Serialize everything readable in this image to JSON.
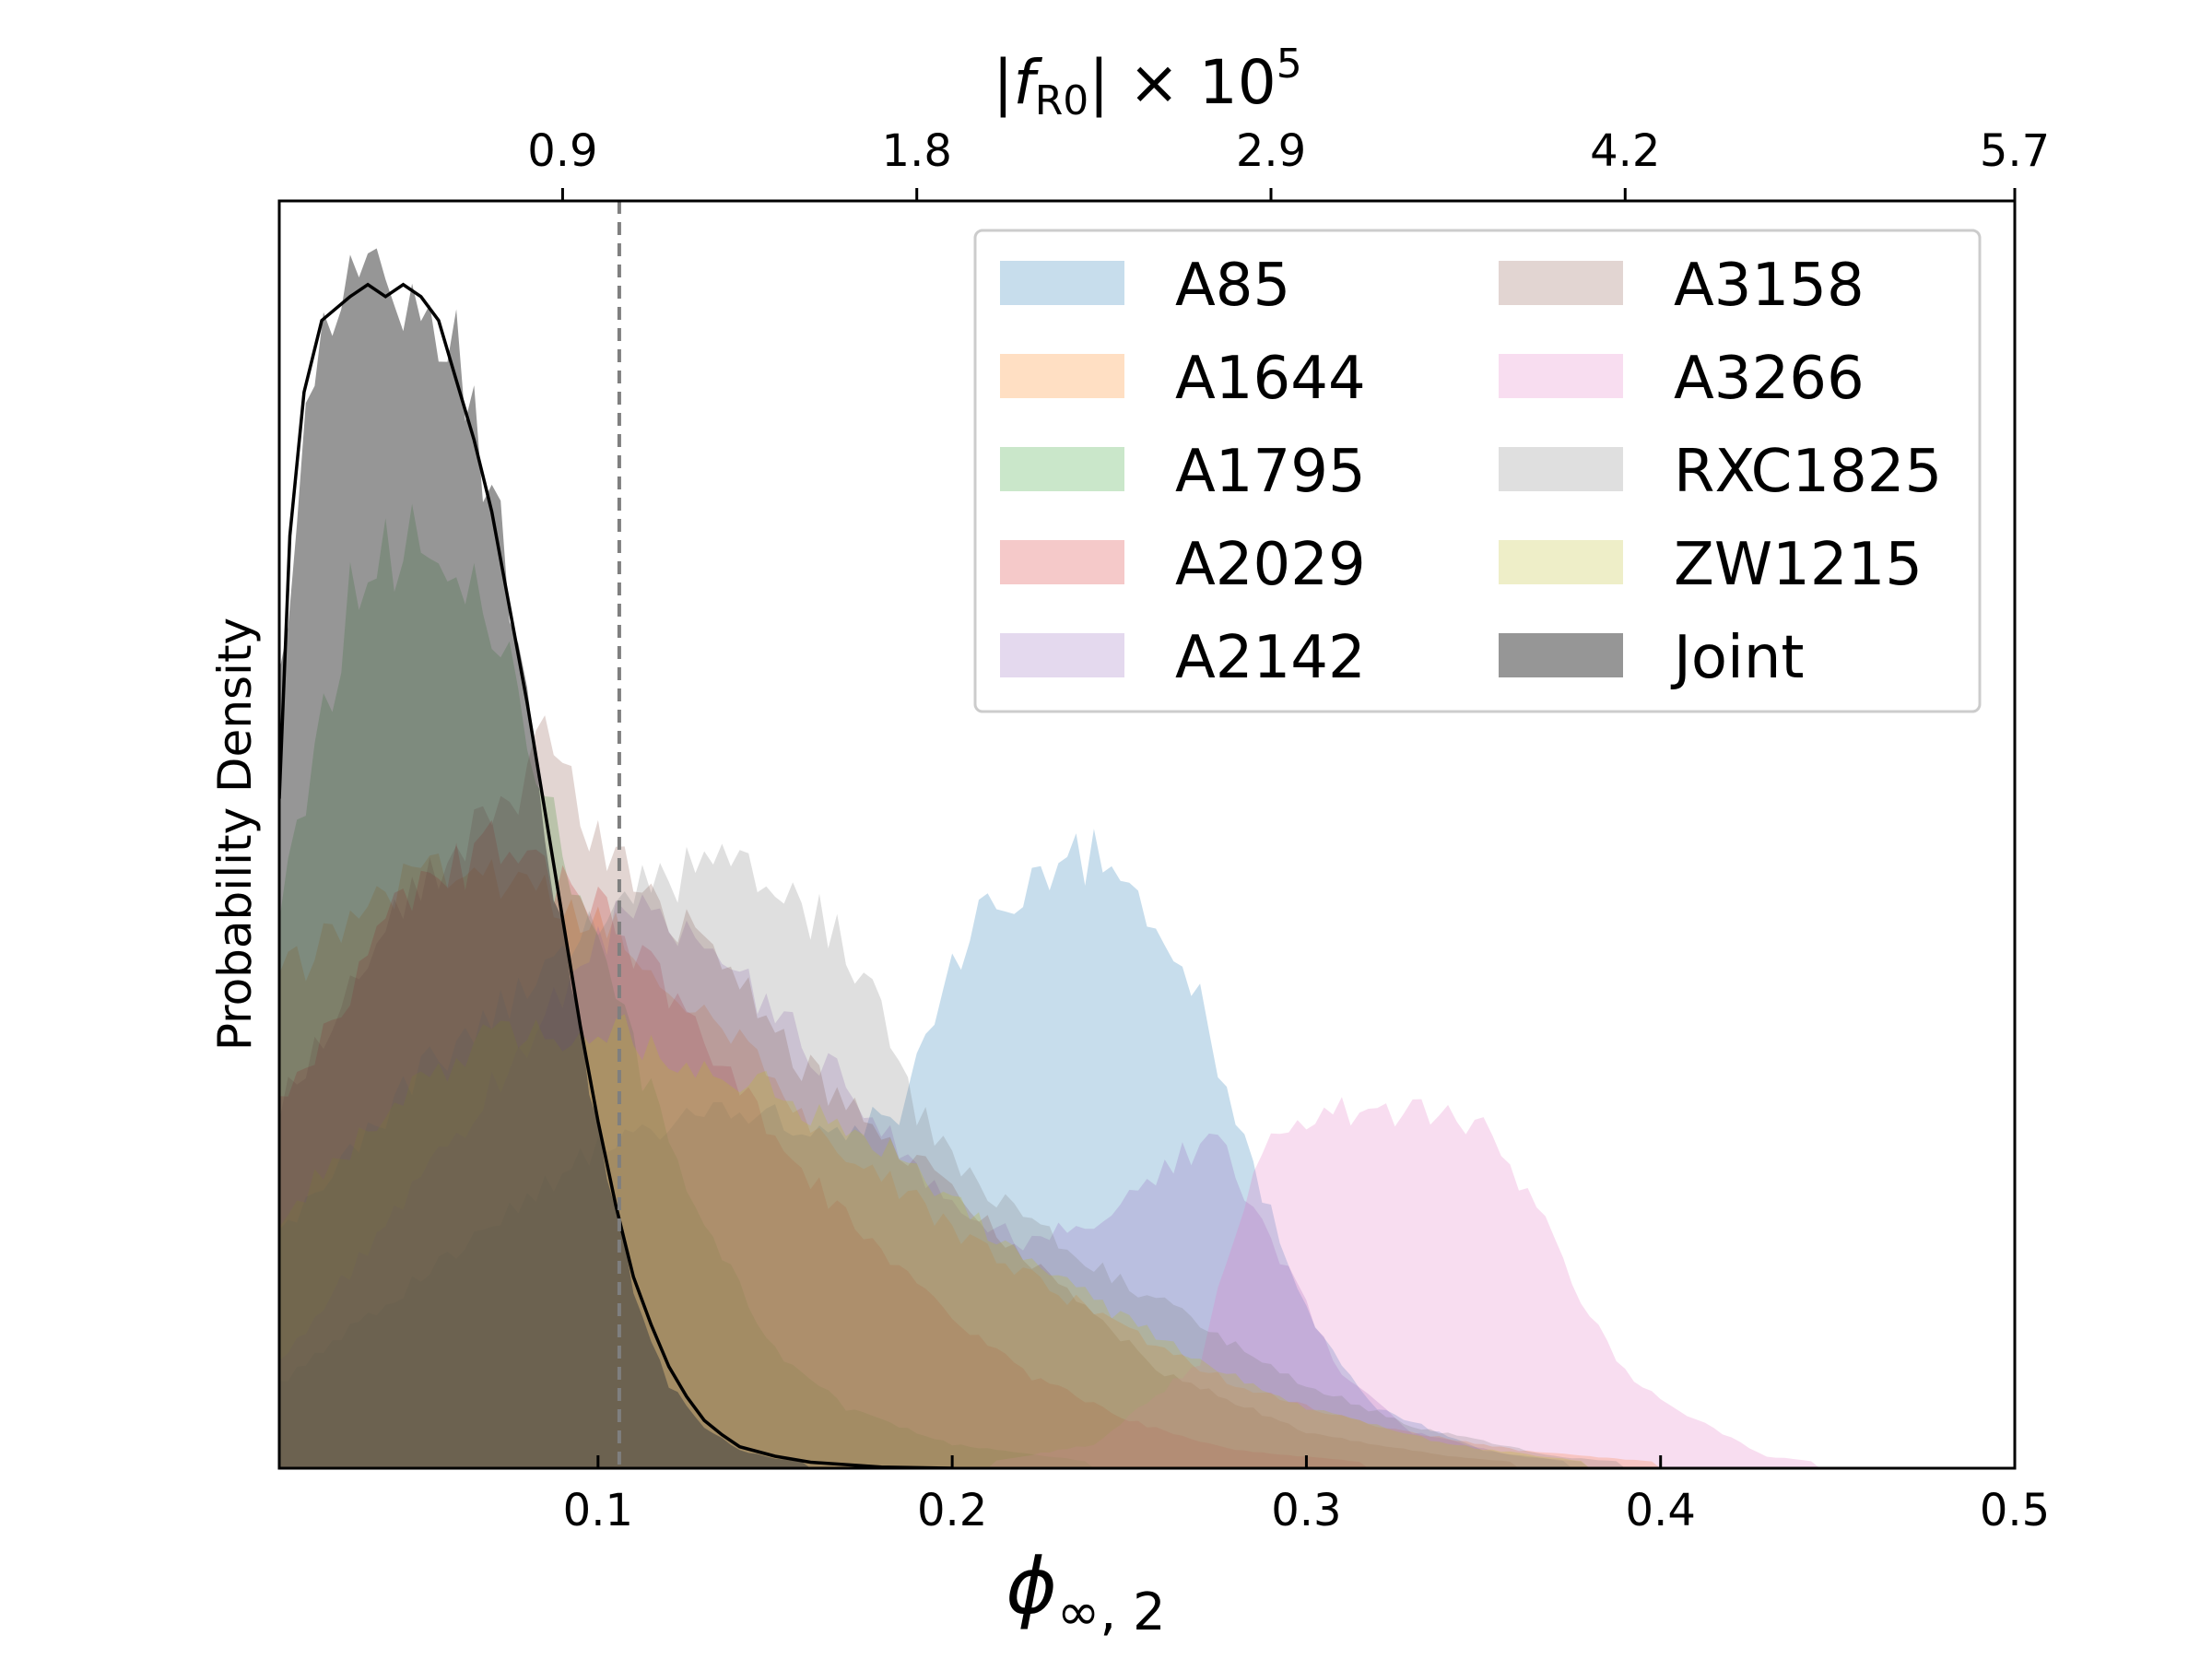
{
  "chart_data": {
    "type": "area",
    "xlabel": {
      "main": "ϕ",
      "sub": "∞, 2"
    },
    "ylabel": "Probability Density",
    "top_axis_label": {
      "pre": "|",
      "var": "f",
      "sub": "R0",
      "post": "| × 10",
      "sup": "5"
    },
    "xlim": [
      0.01,
      0.5
    ],
    "ylim": [
      0,
      1.06
    ],
    "x_ticks": [
      0.1,
      0.2,
      0.3,
      0.4,
      0.5
    ],
    "x_tick_labels": [
      "0.1",
      "0.2",
      "0.3",
      "0.4",
      "0.5"
    ],
    "top_ticks": [
      0.09,
      0.19,
      0.29,
      0.39,
      0.5
    ],
    "top_tick_labels": [
      "0.9",
      "1.8",
      "2.9",
      "4.2",
      "5.7"
    ],
    "vline": {
      "x": 0.106,
      "color": "#7f7f7f",
      "style": "dashed"
    },
    "grid": false,
    "legend_position": "top-right",
    "legend_columns": 2,
    "series": [
      {
        "name": "A85",
        "color": "#1f77b4",
        "opacity": 0.25,
        "points": [
          [
            0.01,
            0.07
          ],
          [
            0.05,
            0.16
          ],
          [
            0.1,
            0.27
          ],
          [
            0.14,
            0.3
          ],
          [
            0.17,
            0.28
          ],
          [
            0.185,
            0.3
          ],
          [
            0.2,
            0.43
          ],
          [
            0.215,
            0.48
          ],
          [
            0.23,
            0.51
          ],
          [
            0.245,
            0.51
          ],
          [
            0.26,
            0.46
          ],
          [
            0.27,
            0.39
          ],
          [
            0.285,
            0.25
          ],
          [
            0.3,
            0.13
          ],
          [
            0.32,
            0.05
          ],
          [
            0.35,
            0.015
          ],
          [
            0.38,
            0.003
          ],
          [
            0.4,
            0
          ]
        ]
      },
      {
        "name": "A1644",
        "color": "#ff7f0e",
        "opacity": 0.25,
        "points": [
          [
            0.01,
            0.41
          ],
          [
            0.04,
            0.48
          ],
          [
            0.07,
            0.5
          ],
          [
            0.1,
            0.46
          ],
          [
            0.13,
            0.38
          ],
          [
            0.16,
            0.29
          ],
          [
            0.2,
            0.2
          ],
          [
            0.24,
            0.13
          ],
          [
            0.28,
            0.07
          ],
          [
            0.32,
            0.035
          ],
          [
            0.36,
            0.015
          ],
          [
            0.4,
            0.005
          ],
          [
            0.44,
            0
          ]
        ]
      },
      {
        "name": "A1795",
        "color": "#2ca02c",
        "opacity": 0.25,
        "points": [
          [
            0.01,
            0.47
          ],
          [
            0.03,
            0.73
          ],
          [
            0.05,
            0.79
          ],
          [
            0.07,
            0.72
          ],
          [
            0.09,
            0.52
          ],
          [
            0.11,
            0.35
          ],
          [
            0.13,
            0.2
          ],
          [
            0.15,
            0.1
          ],
          [
            0.17,
            0.05
          ],
          [
            0.2,
            0.02
          ],
          [
            0.24,
            0.005
          ],
          [
            0.28,
            0
          ]
        ]
      },
      {
        "name": "A2029",
        "color": "#d62728",
        "opacity": 0.25,
        "points": [
          [
            0.01,
            0.3
          ],
          [
            0.04,
            0.46
          ],
          [
            0.07,
            0.52
          ],
          [
            0.1,
            0.47
          ],
          [
            0.13,
            0.36
          ],
          [
            0.16,
            0.24
          ],
          [
            0.19,
            0.15
          ],
          [
            0.22,
            0.08
          ],
          [
            0.25,
            0.04
          ],
          [
            0.28,
            0.015
          ],
          [
            0.32,
            0.004
          ],
          [
            0.35,
            0
          ]
        ]
      },
      {
        "name": "A2142",
        "color": "#9467bd",
        "opacity": 0.25,
        "points": [
          [
            0.01,
            0.09
          ],
          [
            0.05,
            0.24
          ],
          [
            0.09,
            0.4
          ],
          [
            0.11,
            0.47
          ],
          [
            0.13,
            0.43
          ],
          [
            0.15,
            0.38
          ],
          [
            0.18,
            0.29
          ],
          [
            0.2,
            0.22
          ],
          [
            0.22,
            0.19
          ],
          [
            0.24,
            0.21
          ],
          [
            0.26,
            0.25
          ],
          [
            0.275,
            0.28
          ],
          [
            0.29,
            0.19
          ],
          [
            0.31,
            0.08
          ],
          [
            0.33,
            0.03
          ],
          [
            0.36,
            0.01
          ],
          [
            0.4,
            0
          ]
        ]
      },
      {
        "name": "A3158",
        "color": "#8c564b",
        "opacity": 0.25,
        "points": [
          [
            0.01,
            0.3
          ],
          [
            0.04,
            0.46
          ],
          [
            0.07,
            0.55
          ],
          [
            0.085,
            0.6
          ],
          [
            0.1,
            0.53
          ],
          [
            0.13,
            0.44
          ],
          [
            0.16,
            0.33
          ],
          [
            0.2,
            0.23
          ],
          [
            0.23,
            0.15
          ],
          [
            0.26,
            0.08
          ],
          [
            0.3,
            0.03
          ],
          [
            0.34,
            0.01
          ],
          [
            0.38,
            0
          ]
        ]
      },
      {
        "name": "A3266",
        "color": "#e377c2",
        "opacity": 0.25,
        "points": [
          [
            0.01,
            0
          ],
          [
            0.2,
            0
          ],
          [
            0.24,
            0.02
          ],
          [
            0.27,
            0.09
          ],
          [
            0.28,
            0.2
          ],
          [
            0.29,
            0.28
          ],
          [
            0.31,
            0.3
          ],
          [
            0.33,
            0.3
          ],
          [
            0.35,
            0.28
          ],
          [
            0.36,
            0.24
          ],
          [
            0.37,
            0.19
          ],
          [
            0.38,
            0.13
          ],
          [
            0.39,
            0.08
          ],
          [
            0.41,
            0.04
          ],
          [
            0.43,
            0.01
          ],
          [
            0.46,
            0
          ]
        ]
      },
      {
        "name": "RXC1825",
        "color": "#7f7f7f",
        "opacity": 0.25,
        "points": [
          [
            0.01,
            0.2
          ],
          [
            0.05,
            0.33
          ],
          [
            0.09,
            0.43
          ],
          [
            0.11,
            0.48
          ],
          [
            0.13,
            0.5
          ],
          [
            0.15,
            0.49
          ],
          [
            0.17,
            0.44
          ],
          [
            0.18,
            0.38
          ],
          [
            0.19,
            0.3
          ],
          [
            0.21,
            0.23
          ],
          [
            0.24,
            0.17
          ],
          [
            0.27,
            0.12
          ],
          [
            0.3,
            0.07
          ],
          [
            0.33,
            0.035
          ],
          [
            0.37,
            0.01
          ],
          [
            0.41,
            0
          ]
        ]
      },
      {
        "name": "ZW1215",
        "color": "#bcbd22",
        "opacity": 0.25,
        "points": [
          [
            0.01,
            0.21
          ],
          [
            0.04,
            0.3
          ],
          [
            0.07,
            0.36
          ],
          [
            0.1,
            0.37
          ],
          [
            0.13,
            0.34
          ],
          [
            0.16,
            0.3
          ],
          [
            0.18,
            0.27
          ],
          [
            0.21,
            0.2
          ],
          [
            0.24,
            0.14
          ],
          [
            0.27,
            0.09
          ],
          [
            0.3,
            0.05
          ],
          [
            0.34,
            0.02
          ],
          [
            0.38,
            0.005
          ],
          [
            0.42,
            0
          ]
        ]
      },
      {
        "name": "Joint",
        "color": "#404040",
        "opacity": 0.55,
        "points": [
          [
            0.01,
            0.65
          ],
          [
            0.015,
            0.83
          ],
          [
            0.02,
            0.92
          ],
          [
            0.03,
            1.0
          ],
          [
            0.035,
            1.01
          ],
          [
            0.04,
            1.0
          ],
          [
            0.05,
            1.0
          ],
          [
            0.06,
            0.94
          ],
          [
            0.07,
            0.82
          ],
          [
            0.08,
            0.64
          ],
          [
            0.09,
            0.45
          ],
          [
            0.1,
            0.28
          ],
          [
            0.11,
            0.15
          ],
          [
            0.12,
            0.07
          ],
          [
            0.13,
            0.035
          ],
          [
            0.14,
            0.015
          ],
          [
            0.15,
            0.008
          ],
          [
            0.17,
            0.002
          ],
          [
            0.2,
            0
          ]
        ]
      }
    ],
    "kde_line": {
      "color": "#000000",
      "points": [
        [
          0.01,
          0.56
        ],
        [
          0.013,
          0.78
        ],
        [
          0.017,
          0.9
        ],
        [
          0.022,
          0.96
        ],
        [
          0.03,
          0.98
        ],
        [
          0.035,
          0.99
        ],
        [
          0.04,
          0.98
        ],
        [
          0.045,
          0.99
        ],
        [
          0.05,
          0.98
        ],
        [
          0.055,
          0.96
        ],
        [
          0.06,
          0.91
        ],
        [
          0.065,
          0.86
        ],
        [
          0.07,
          0.8
        ],
        [
          0.075,
          0.72
        ],
        [
          0.08,
          0.64
        ],
        [
          0.085,
          0.55
        ],
        [
          0.09,
          0.46
        ],
        [
          0.095,
          0.37
        ],
        [
          0.1,
          0.29
        ],
        [
          0.105,
          0.22
        ],
        [
          0.11,
          0.16
        ],
        [
          0.115,
          0.12
        ],
        [
          0.12,
          0.085
        ],
        [
          0.125,
          0.06
        ],
        [
          0.13,
          0.04
        ],
        [
          0.135,
          0.028
        ],
        [
          0.14,
          0.018
        ],
        [
          0.15,
          0.01
        ],
        [
          0.16,
          0.005
        ],
        [
          0.18,
          0.001
        ],
        [
          0.2,
          0
        ]
      ]
    }
  }
}
